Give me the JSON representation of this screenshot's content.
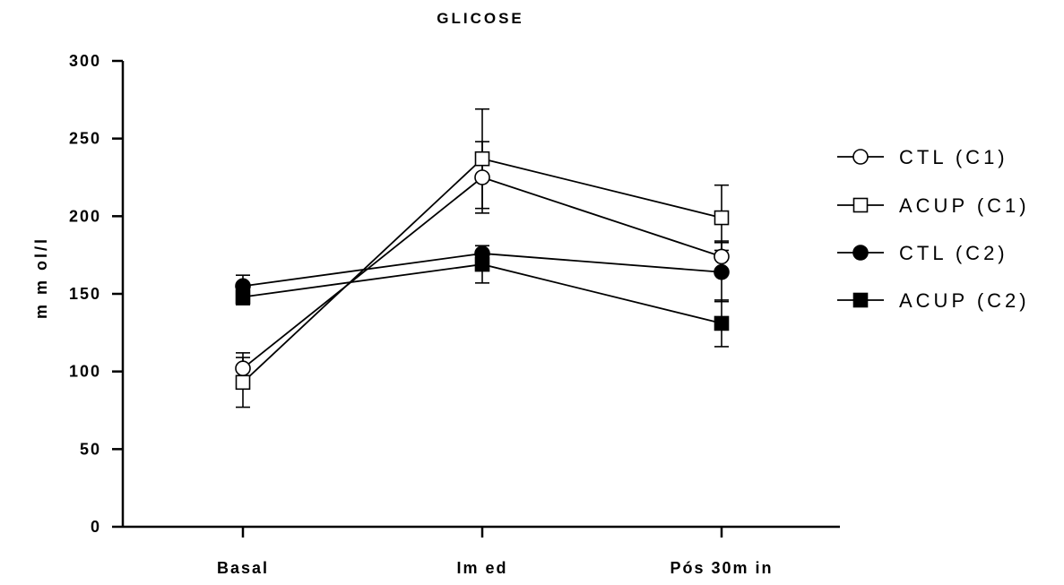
{
  "chart_data": {
    "type": "line",
    "title": "GLICOSE",
    "xlabel": "",
    "ylabel": "m m ol/l",
    "categories": [
      "Basal",
      "Im ed",
      "Pós 30m in"
    ],
    "ylim": [
      0,
      300
    ],
    "yticks": [
      "0",
      "50",
      "100",
      "150",
      "200",
      "250",
      "300"
    ],
    "grid": false,
    "legend_position": "right",
    "series": [
      {
        "name": "CTL (C1)",
        "marker": "circle-open",
        "values": [
          102,
          225,
          174
        ],
        "error": [
          10,
          23,
          10
        ]
      },
      {
        "name": "ACUP (C1)",
        "marker": "square-open",
        "values": [
          93,
          237,
          199
        ],
        "error": [
          16,
          32,
          21
        ]
      },
      {
        "name": "CTL (C2)",
        "marker": "circle-filled",
        "values": [
          155,
          176,
          164
        ],
        "error": [
          7,
          5,
          19
        ]
      },
      {
        "name": "ACUP (C2)",
        "marker": "square-filled",
        "values": [
          148,
          169,
          131
        ],
        "error": [
          5,
          12,
          15
        ]
      }
    ],
    "colors": {
      "line": "#000000",
      "background": "#ffffff"
    }
  }
}
